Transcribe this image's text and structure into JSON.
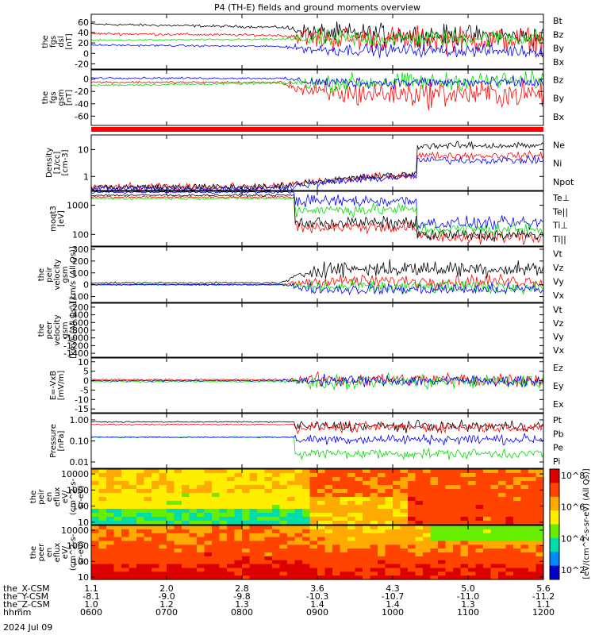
{
  "chart_data": {
    "type": "line",
    "title": "P4 (TH-E) fields and ground moments overview",
    "date": "2024 Jul 09",
    "colors": {
      "black": "#000000",
      "red": "#ff0000",
      "green": "#00dd00",
      "blue": "#0000ff",
      "spec_bg": "#ffcc00"
    },
    "x_time": [
      "0600",
      "0700",
      "0800",
      "0900",
      "1000",
      "1100",
      "1200"
    ],
    "panels": [
      {
        "id": "fgs-dsl",
        "ylabel": [
          "the",
          "fgs",
          "dsl",
          "[nT]"
        ],
        "ylim": [
          -30,
          75
        ],
        "yticks": [
          {
            "v": 60,
            "l": "60"
          },
          {
            "v": 40,
            "l": "40"
          },
          {
            "v": 20,
            "l": "20"
          },
          {
            "v": 0,
            "l": "0"
          },
          {
            "v": -20,
            "l": "-20"
          }
        ],
        "series": [
          {
            "name": "Bt",
            "color": "#000000"
          },
          {
            "name": "Bz",
            "color": "#ff0000"
          },
          {
            "name": "By",
            "color": "#00dd00"
          },
          {
            "name": "Bx",
            "color": "#0000ff"
          }
        ]
      },
      {
        "id": "fgs-gsm",
        "ylabel": [
          "the",
          "fgs",
          "gsm",
          "[nT]"
        ],
        "ylim": [
          -75,
          15
        ],
        "yticks": [
          {
            "v": 0,
            "l": "0"
          },
          {
            "v": -20,
            "l": "-20"
          },
          {
            "v": -40,
            "l": "-40"
          },
          {
            "v": -60,
            "l": "-60"
          }
        ],
        "series": [
          {
            "name": "Bz",
            "color": "#ff0000"
          },
          {
            "name": "By",
            "color": "#00dd00"
          },
          {
            "name": "Bx",
            "color": "#0000ff"
          }
        ]
      },
      {
        "id": "density",
        "ylabel": [
          "Density",
          "[1/cc]",
          "[cm-3]"
        ],
        "ylim": [
          0.3,
          35
        ],
        "log": true,
        "yticks": [
          {
            "v": 10,
            "l": "10"
          },
          {
            "v": 1,
            "l": "1"
          }
        ],
        "series": [
          {
            "name": "Ne",
            "color": "#ff0000"
          },
          {
            "name": "Ni",
            "color": "#000000"
          },
          {
            "name": "Npot",
            "color": "#0000ff"
          }
        ]
      },
      {
        "id": "temperature",
        "ylabel": [
          "moqt3",
          "[eV]"
        ],
        "ylim": [
          40,
          3000
        ],
        "log": true,
        "yticks": [
          {
            "v": 1000,
            "l": "1000"
          },
          {
            "v": 100,
            "l": "100"
          }
        ],
        "series": [
          {
            "name": "Te⊥",
            "color": "#ff0000"
          },
          {
            "name": "Te||",
            "color": "#000000"
          },
          {
            "name": "Ti⊥",
            "color": "#0000ff"
          },
          {
            "name": "Ti||",
            "color": "#00dd00"
          }
        ]
      },
      {
        "id": "peir-velocity",
        "ylabel": [
          "the",
          "peir",
          "velocity",
          "gsm",
          "[km/s (All Qs)]"
        ],
        "ylim": [
          -150,
          320
        ],
        "yticks": [
          {
            "v": 300,
            "l": "300"
          },
          {
            "v": 200,
            "l": "200"
          },
          {
            "v": 100,
            "l": "100"
          },
          {
            "v": 0,
            "l": "0"
          },
          {
            "v": -100,
            "l": "-100"
          }
        ],
        "series": [
          {
            "name": "Vt",
            "color": "#000000"
          },
          {
            "name": "Vz",
            "color": "#ff0000"
          },
          {
            "name": "Vy",
            "color": "#00dd00"
          },
          {
            "name": "Vx",
            "color": "#0000ff"
          }
        ]
      },
      {
        "id": "peer-velocity",
        "ylabel": [
          "the",
          "peer",
          "velocity",
          "gsm",
          "[km/s (All Qs)]"
        ],
        "ylim": [
          -1500,
          -100
        ],
        "yticks": [
          {
            "v": -200,
            "l": "-200"
          },
          {
            "v": -400,
            "l": "-400"
          },
          {
            "v": -600,
            "l": "-600"
          },
          {
            "v": -800,
            "l": "-800"
          },
          {
            "v": -1000,
            "l": "-1000"
          },
          {
            "v": -1200,
            "l": "-1200"
          },
          {
            "v": -1400,
            "l": "-1400"
          }
        ],
        "series": [
          {
            "name": "Vt",
            "color": "#000000"
          },
          {
            "name": "Vz",
            "color": "#ff0000"
          },
          {
            "name": "Vy",
            "color": "#00dd00"
          },
          {
            "name": "Vx",
            "color": "#0000ff"
          }
        ]
      },
      {
        "id": "efield",
        "ylabel": [
          "E=-VxB",
          "[mV/m]"
        ],
        "ylim": [
          -17,
          12
        ],
        "yticks": [
          {
            "v": 10,
            "l": "10"
          },
          {
            "v": 5,
            "l": "5"
          },
          {
            "v": 0,
            "l": "0"
          },
          {
            "v": -5,
            "l": "-5"
          },
          {
            "v": -10,
            "l": "-10"
          },
          {
            "v": -15,
            "l": "-15"
          }
        ],
        "series": [
          {
            "name": "Ez",
            "color": "#ff0000"
          },
          {
            "name": "Ey",
            "color": "#00dd00"
          },
          {
            "name": "Ex",
            "color": "#0000ff"
          }
        ]
      },
      {
        "id": "pressure",
        "ylabel": [
          "Pressure",
          "[nPa]"
        ],
        "ylim": [
          0.005,
          2
        ],
        "log": true,
        "yticks": [
          {
            "v": 1,
            "l": "1.00"
          },
          {
            "v": 0.1,
            "l": "0.10"
          },
          {
            "v": 0.01,
            "l": "0.01"
          }
        ],
        "series": [
          {
            "name": "Pt",
            "color": "#000000"
          },
          {
            "name": "Pb",
            "color": "#ff0000"
          },
          {
            "name": "Pe",
            "color": "#00dd00"
          },
          {
            "name": "Pi",
            "color": "#0000ff"
          }
        ]
      },
      {
        "id": "peir-spec",
        "type": "heatmap",
        "ylabel": [
          "the",
          "peir",
          "en",
          "eflux",
          "eV/",
          "(cm^2-s-",
          "sr-eV)"
        ],
        "ylim": [
          7,
          20000
        ],
        "log": true,
        "yticks": [
          {
            "v": 10000,
            "l": "10000"
          },
          {
            "v": 1000,
            "l": "1000"
          },
          {
            "v": 100,
            "l": "100"
          },
          {
            "v": 10,
            "l": "10"
          }
        ]
      },
      {
        "id": "peer-spec",
        "type": "heatmap",
        "ylabel": [
          "the",
          "peer",
          "en",
          "eflux",
          "eV/",
          "(cm^2-s-",
          "sr-eV)"
        ],
        "ylim": [
          7,
          20000
        ],
        "log": true,
        "yticks": [
          {
            "v": 10000,
            "l": "10000"
          },
          {
            "v": 1000,
            "l": "1000"
          },
          {
            "v": 100,
            "l": "100"
          },
          {
            "v": 10,
            "l": "10"
          }
        ]
      }
    ],
    "colorbar": {
      "label": "[eV/(cm^2-s-sr-eV) (All Qs)]",
      "ticks": [
        "10^8",
        "10^6",
        "10^4",
        "10^2"
      ]
    },
    "ephemeris": [
      {
        "label": "the_X-CSM",
        "values": [
          "1.1",
          "2.0",
          "2.8",
          "3.6",
          "4.3",
          "5.0",
          "5.6"
        ]
      },
      {
        "label": "the_Y-CSM",
        "values": [
          "-8.1",
          "-9.0",
          "-9.8",
          "-10.3",
          "-10.7",
          "-11.0",
          "-11.2"
        ]
      },
      {
        "label": "the_Z-CSM",
        "values": [
          "1.0",
          "1.2",
          "1.3",
          "1.4",
          "1.4",
          "1.3",
          "1.1"
        ]
      },
      {
        "label": "hhmm",
        "values": [
          "0600",
          "0700",
          "0800",
          "0900",
          "1000",
          "1100",
          "1200"
        ]
      }
    ]
  }
}
